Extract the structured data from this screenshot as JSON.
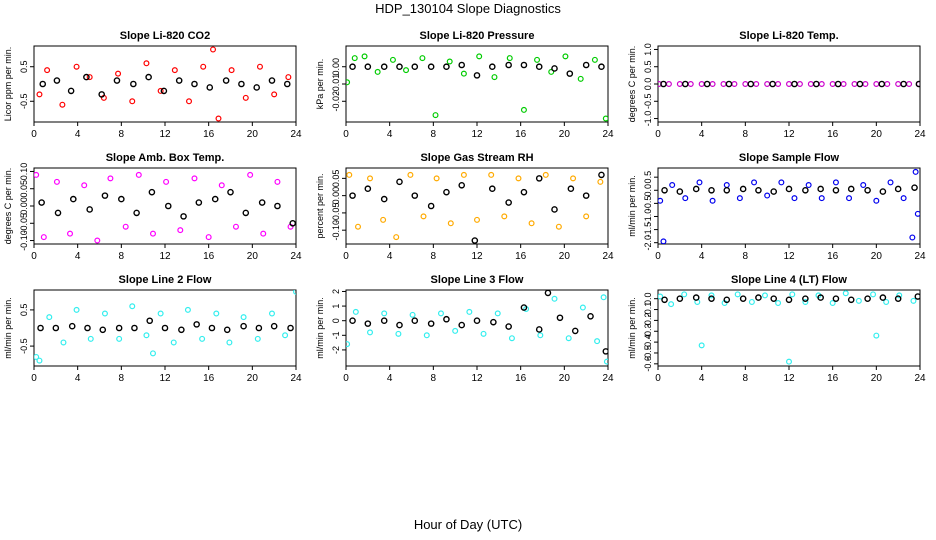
{
  "figure": {
    "title": "HDP_130104  Slope Diagnostics",
    "xlabel": "Hour of Day (UTC)"
  },
  "chart_data": [
    {
      "type": "scatter",
      "title": "Slope Li-820 CO2",
      "ylabel": "Licor ppm per min.",
      "color": "#ff0000",
      "xlim": [
        0,
        24
      ],
      "ylim": [
        -1.1,
        1.1
      ],
      "xticks": [
        0,
        4,
        8,
        12,
        16,
        20,
        24
      ],
      "yticks": [
        -0.5,
        0.5
      ],
      "ytick_labels": [
        "-0.5",
        "0.5"
      ],
      "series": [
        {
          "name": "all",
          "color": "#ff0000",
          "x": [
            0.5,
            1.2,
            2.6,
            3.9,
            5.1,
            6.4,
            7.7,
            9.0,
            10.3,
            11.6,
            12.9,
            14.2,
            15.5,
            16.4,
            16.9,
            18.1,
            19.4,
            20.7,
            22.0,
            23.3
          ],
          "y": [
            -0.3,
            0.4,
            -0.6,
            0.5,
            0.2,
            -0.4,
            0.3,
            -0.5,
            0.6,
            -0.2,
            0.4,
            -0.5,
            0.5,
            1.0,
            -1.0,
            0.4,
            -0.4,
            0.5,
            -0.3,
            0.2
          ]
        },
        {
          "name": "hourly",
          "color": "#000000",
          "x": [
            0.8,
            2.1,
            3.4,
            4.8,
            6.2,
            7.6,
            9.1,
            10.5,
            11.9,
            13.3,
            14.7,
            16.1,
            17.6,
            19.0,
            20.4,
            21.8,
            23.2
          ],
          "y": [
            0.0,
            0.1,
            -0.2,
            0.2,
            -0.3,
            0.1,
            0.0,
            0.2,
            -0.2,
            0.1,
            0.0,
            -0.1,
            0.1,
            0.0,
            -0.1,
            0.1,
            0.0
          ]
        }
      ]
    },
    {
      "type": "scatter",
      "title": "Slope Li-820 Pressure",
      "ylabel": "kPa per min.",
      "color": "#00cc00",
      "xlim": [
        0,
        24
      ],
      "ylim": [
        -0.032,
        0.012
      ],
      "xticks": [
        0,
        4,
        8,
        12,
        16,
        20,
        24
      ],
      "yticks": [
        -0.02,
        -0.01,
        0.0
      ],
      "ytick_labels": [
        "-0.02",
        "-0.01",
        "0.00"
      ],
      "series": [
        {
          "name": "all",
          "color": "#00cc00",
          "x": [
            0.1,
            0.8,
            1.7,
            2.9,
            4.3,
            5.5,
            7.0,
            8.2,
            9.5,
            10.8,
            12.2,
            13.6,
            15.0,
            16.3,
            17.5,
            18.8,
            20.1,
            21.5,
            22.8,
            23.8
          ],
          "y": [
            -0.009,
            0.005,
            0.006,
            -0.003,
            0.004,
            -0.002,
            0.005,
            -0.028,
            0.003,
            -0.004,
            0.006,
            -0.006,
            0.005,
            -0.025,
            0.004,
            -0.003,
            0.006,
            -0.007,
            0.004,
            -0.03
          ]
        },
        {
          "name": "hourly",
          "color": "#000000",
          "x": [
            0.6,
            2.0,
            3.5,
            4.9,
            6.3,
            7.8,
            9.2,
            10.6,
            12.0,
            13.4,
            14.9,
            16.3,
            17.7,
            19.1,
            20.5,
            22.0,
            23.4
          ],
          "y": [
            0.0,
            0.0,
            0.0,
            0.0,
            0.0,
            0.0,
            0.0,
            0.001,
            -0.005,
            0.0,
            0.001,
            0.001,
            0.0,
            -0.001,
            -0.004,
            0.001,
            0.0
          ]
        }
      ]
    },
    {
      "type": "scatter",
      "title": "Slope Li-820 Temp.",
      "ylabel": "degrees C per min.",
      "color": "#cc00cc",
      "xlim": [
        0,
        24
      ],
      "ylim": [
        -1.1,
        1.1
      ],
      "xticks": [
        0,
        4,
        8,
        12,
        16,
        20,
        24
      ],
      "yticks": [
        -1.0,
        -0.5,
        0.0,
        0.5,
        1.0
      ],
      "ytick_labels": [
        "-1.0",
        "-0.5",
        "0.0",
        "0.5",
        "1.0"
      ],
      "series": [
        {
          "name": "all",
          "color": "#cc00cc",
          "x": [
            0.1,
            1.0,
            2.0,
            3.0,
            4.0,
            5.0,
            6.0,
            7.0,
            8.0,
            9.0,
            10.0,
            11.0,
            12.0,
            13.0,
            14.0,
            15.0,
            16.0,
            17.0,
            18.0,
            19.0,
            20.0,
            21.0,
            22.0,
            23.0,
            23.9
          ],
          "y": [
            0,
            0,
            0,
            0,
            0,
            0,
            0,
            0,
            0,
            0,
            0,
            0,
            0,
            0,
            0,
            0,
            0,
            0,
            0,
            0,
            0,
            0,
            0,
            0,
            0
          ]
        },
        {
          "name": "hourly",
          "color": "#000000",
          "x": [
            0.5,
            2.5,
            4.5,
            6.5,
            8.5,
            10.5,
            12.5,
            14.5,
            16.5,
            18.5,
            20.5,
            22.5,
            23.9
          ],
          "y": [
            0,
            0,
            0,
            0,
            0,
            0,
            0,
            0,
            0,
            0,
            0,
            0,
            0
          ]
        }
      ]
    },
    {
      "type": "scatter",
      "title": "Slope Amb. Box Temp.",
      "ylabel": "degrees C per min.",
      "color": "#ff00ff",
      "xlim": [
        0,
        24
      ],
      "ylim": [
        -0.11,
        0.11
      ],
      "xticks": [
        0,
        4,
        8,
        12,
        16,
        20,
        24
      ],
      "yticks": [
        -0.1,
        -0.05,
        0.0,
        0.05,
        0.1
      ],
      "ytick_labels": [
        "-0.10",
        "-0.05",
        "0.00",
        "0.05",
        "0.10"
      ],
      "series": [
        {
          "name": "all",
          "color": "#ff00ff",
          "x": [
            0.2,
            0.9,
            2.1,
            3.3,
            4.6,
            5.8,
            7.0,
            8.4,
            9.6,
            10.9,
            12.1,
            13.4,
            14.7,
            16.0,
            17.2,
            18.5,
            19.8,
            21.0,
            22.3,
            23.5
          ],
          "y": [
            0.09,
            -0.09,
            0.07,
            -0.08,
            0.06,
            -0.1,
            0.08,
            -0.06,
            0.09,
            -0.08,
            0.07,
            -0.07,
            0.08,
            -0.09,
            0.06,
            -0.06,
            0.09,
            -0.08,
            0.07,
            -0.06
          ]
        },
        {
          "name": "hourly",
          "color": "#000000",
          "x": [
            0.7,
            2.2,
            3.6,
            5.1,
            6.5,
            8.0,
            9.4,
            10.8,
            12.3,
            13.7,
            15.1,
            16.6,
            18.0,
            19.4,
            20.9,
            22.3,
            23.7
          ],
          "y": [
            0.01,
            -0.02,
            0.02,
            -0.01,
            0.03,
            0.02,
            -0.02,
            0.04,
            0.0,
            -0.03,
            0.01,
            0.02,
            0.04,
            -0.02,
            0.01,
            0.0,
            -0.05
          ]
        }
      ]
    },
    {
      "type": "scatter",
      "title": "Slope Gas Stream RH",
      "ylabel": "percent per min.",
      "color": "#ffaa00",
      "xlim": [
        0,
        24
      ],
      "ylim": [
        -0.14,
        0.08
      ],
      "xticks": [
        0,
        4,
        8,
        12,
        16,
        20,
        24
      ],
      "yticks": [
        -0.1,
        -0.05,
        0.0,
        0.05
      ],
      "ytick_labels": [
        "-0.10",
        "-0.05",
        "0.00",
        "0.05"
      ],
      "series": [
        {
          "name": "all",
          "color": "#ffaa00",
          "x": [
            0.3,
            1.1,
            2.2,
            3.4,
            4.6,
            5.9,
            7.1,
            8.3,
            9.6,
            10.8,
            12.0,
            13.3,
            14.5,
            15.8,
            17.0,
            18.3,
            19.5,
            20.8,
            22.0,
            23.3
          ],
          "y": [
            0.06,
            -0.09,
            0.05,
            -0.07,
            -0.12,
            0.06,
            -0.06,
            0.05,
            -0.08,
            0.06,
            -0.07,
            0.06,
            -0.06,
            0.05,
            -0.08,
            0.06,
            -0.09,
            0.05,
            -0.06,
            0.04
          ]
        },
        {
          "name": "hourly",
          "color": "#000000",
          "x": [
            0.6,
            2.0,
            3.5,
            4.9,
            6.3,
            7.8,
            9.2,
            10.6,
            11.8,
            13.4,
            14.9,
            16.3,
            17.7,
            19.1,
            20.6,
            22.0,
            23.4
          ],
          "y": [
            0.0,
            0.02,
            -0.01,
            0.04,
            0.0,
            -0.03,
            0.01,
            0.03,
            -0.13,
            0.02,
            -0.02,
            0.01,
            0.05,
            -0.04,
            0.02,
            0.0,
            0.06
          ]
        }
      ]
    },
    {
      "type": "scatter",
      "title": "Slope Sample Flow",
      "ylabel": "ml/min per min.",
      "color": "#0000ee",
      "xlim": [
        0,
        24
      ],
      "ylim": [
        -2.05,
        0.85
      ],
      "xticks": [
        0,
        4,
        8,
        12,
        16,
        20,
        24
      ],
      "yticks": [
        -2.0,
        -1.5,
        -1.0,
        -0.5,
        0.0,
        0.5
      ],
      "ytick_labels": [
        "-2.0",
        "-1.5",
        "-1.0",
        "-0.5",
        "0.0",
        "0.5"
      ],
      "series": [
        {
          "name": "all",
          "color": "#0000ee",
          "x": [
            0.2,
            0.5,
            1.3,
            2.5,
            3.8,
            5.0,
            6.3,
            7.5,
            8.8,
            10.0,
            11.3,
            12.5,
            13.8,
            15.0,
            16.3,
            17.5,
            18.8,
            20.0,
            21.3,
            22.5,
            23.3,
            23.6,
            23.8
          ],
          "y": [
            -0.4,
            -1.95,
            0.2,
            -0.3,
            0.3,
            -0.4,
            0.2,
            -0.3,
            0.3,
            -0.2,
            0.3,
            -0.3,
            0.2,
            -0.3,
            0.3,
            -0.3,
            0.2,
            -0.4,
            0.3,
            -0.3,
            -1.8,
            0.7,
            -0.9
          ]
        },
        {
          "name": "hourly",
          "color": "#000000",
          "x": [
            0.6,
            2.0,
            3.5,
            4.9,
            6.3,
            7.8,
            9.2,
            10.6,
            12.0,
            13.5,
            14.9,
            16.3,
            17.7,
            19.2,
            20.6,
            22.0,
            23.5
          ],
          "y": [
            0.0,
            -0.05,
            0.05,
            0.0,
            0.0,
            0.05,
            0.0,
            -0.05,
            0.05,
            0.0,
            0.05,
            0.0,
            0.05,
            0.0,
            -0.05,
            0.05,
            0.1
          ]
        }
      ]
    },
    {
      "type": "scatter",
      "title": "Slope Line 2 Flow",
      "ylabel": "ml/min per min.",
      "color": "#33eeee",
      "xlim": [
        0,
        24
      ],
      "ylim": [
        -1.05,
        1.05
      ],
      "xticks": [
        0,
        4,
        8,
        12,
        16,
        20,
        24
      ],
      "yticks": [
        -0.5,
        0.5
      ],
      "ytick_labels": [
        "-0.5",
        "0.5"
      ],
      "series": [
        {
          "name": "all",
          "color": "#33eeee",
          "x": [
            0.2,
            0.5,
            1.4,
            2.7,
            3.9,
            5.2,
            6.5,
            7.8,
            9.0,
            10.3,
            10.9,
            11.6,
            12.8,
            14.1,
            15.4,
            16.7,
            17.9,
            19.2,
            20.5,
            21.8,
            23.0,
            24.0
          ],
          "y": [
            -0.8,
            -0.9,
            0.3,
            -0.4,
            0.5,
            -0.3,
            0.4,
            -0.3,
            0.6,
            -0.2,
            -0.7,
            0.4,
            -0.4,
            0.5,
            -0.3,
            0.4,
            -0.4,
            0.3,
            -0.3,
            0.4,
            -0.2,
            1.0
          ]
        },
        {
          "name": "hourly",
          "color": "#000000",
          "x": [
            0.6,
            2.0,
            3.5,
            4.9,
            6.3,
            7.8,
            9.2,
            10.6,
            12.0,
            13.5,
            14.9,
            16.3,
            17.7,
            19.2,
            20.6,
            22.0,
            23.5
          ],
          "y": [
            0.0,
            0.0,
            0.05,
            0.0,
            -0.05,
            0.0,
            0.0,
            0.2,
            0.0,
            -0.05,
            0.1,
            0.0,
            -0.05,
            0.05,
            0.0,
            0.05,
            0.0
          ]
        }
      ]
    },
    {
      "type": "scatter",
      "title": "Slope Line 3 Flow",
      "ylabel": "ml/min per min.",
      "color": "#33eeee",
      "xlim": [
        0,
        24
      ],
      "ylim": [
        -3.1,
        2.1
      ],
      "xticks": [
        0,
        4,
        8,
        12,
        16,
        20,
        24
      ],
      "yticks": [
        -2,
        -1,
        0,
        1,
        2
      ],
      "ytick_labels": [
        "-2",
        "-1",
        "0",
        "1",
        "2"
      ],
      "series": [
        {
          "name": "all",
          "color": "#33eeee",
          "x": [
            0.1,
            0.9,
            2.2,
            3.5,
            4.8,
            6.1,
            7.4,
            8.7,
            10.0,
            11.3,
            12.6,
            13.9,
            15.2,
            16.5,
            17.8,
            19.1,
            20.4,
            21.7,
            23.0,
            23.6,
            23.9
          ],
          "y": [
            -1.6,
            0.6,
            -0.8,
            0.5,
            -0.9,
            0.4,
            -1.0,
            0.5,
            -0.7,
            0.6,
            -0.9,
            0.5,
            -1.2,
            0.8,
            -1.0,
            1.5,
            -1.2,
            0.9,
            -1.4,
            1.6,
            -2.8
          ]
        },
        {
          "name": "hourly",
          "color": "#000000",
          "x": [
            0.6,
            2.0,
            3.5,
            4.9,
            6.3,
            7.8,
            9.2,
            10.6,
            12.0,
            13.5,
            14.9,
            16.3,
            17.7,
            18.5,
            19.6,
            21.0,
            22.4,
            23.8
          ],
          "y": [
            0.0,
            -0.2,
            0.0,
            -0.3,
            0.0,
            -0.2,
            0.1,
            -0.3,
            0.0,
            -0.1,
            -0.4,
            0.9,
            -0.6,
            1.9,
            0.2,
            -0.7,
            0.3,
            -2.1
          ]
        }
      ]
    },
    {
      "type": "scatter",
      "title": "Slope Line 4 (LT) Flow",
      "ylabel": "ml/min per min.",
      "color": "#33eeee",
      "xlim": [
        0,
        24
      ],
      "ylim": [
        -0.62,
        0.08
      ],
      "xticks": [
        0,
        4,
        8,
        12,
        16,
        20,
        24
      ],
      "yticks": [
        -0.6,
        -0.5,
        -0.4,
        -0.3,
        -0.2,
        -0.1,
        0.0
      ],
      "ytick_labels": [
        "-0.6",
        "-0.5",
        "-0.4",
        "-0.3",
        "-0.2",
        "-0.1",
        "0.0"
      ],
      "series": [
        {
          "name": "all",
          "color": "#33eeee",
          "x": [
            0.2,
            1.2,
            2.4,
            3.6,
            4.0,
            4.9,
            6.1,
            7.3,
            8.6,
            9.8,
            11.0,
            12.0,
            12.3,
            13.5,
            14.7,
            16.0,
            17.2,
            18.4,
            19.7,
            20.0,
            20.9,
            22.1,
            23.4
          ],
          "y": [
            0.02,
            -0.05,
            0.04,
            -0.03,
            -0.43,
            0.03,
            -0.04,
            0.04,
            -0.03,
            0.03,
            -0.04,
            -0.58,
            0.04,
            -0.03,
            0.03,
            -0.04,
            0.05,
            -0.02,
            0.04,
            -0.34,
            -0.03,
            0.03,
            -0.02
          ]
        },
        {
          "name": "hourly",
          "color": "#000000",
          "x": [
            0.6,
            2.0,
            3.5,
            4.9,
            6.3,
            7.8,
            9.2,
            10.6,
            12.0,
            13.5,
            14.9,
            16.3,
            17.7,
            19.2,
            20.6,
            22.0,
            23.8
          ],
          "y": [
            -0.01,
            0.0,
            0.01,
            0.0,
            -0.01,
            0.0,
            0.01,
            0.0,
            -0.01,
            0.0,
            0.01,
            0.0,
            -0.01,
            0.0,
            0.01,
            0.0,
            0.02
          ]
        }
      ]
    }
  ]
}
